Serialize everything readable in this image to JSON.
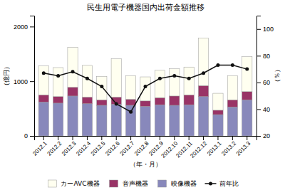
{
  "chart_data": {
    "type": "bar",
    "title": "民生用電子機器国内出荷金額推移",
    "xlabel": "（年・月）",
    "ylabel": "（億円）",
    "y2label": "（％）",
    "categories": [
      "2012.1",
      "2012.2",
      "2012.3",
      "2012.4",
      "2012.5",
      "2012.6",
      "2012.7",
      "2012.8",
      "2012.9",
      "2012.10",
      "2012.11",
      "2012.12",
      "2013.1",
      "2013.2",
      "2013.3"
    ],
    "stacked": true,
    "grid": false,
    "legend": "bottom",
    "series": [
      {
        "name": "映像機器",
        "type": "bar",
        "color": "#8888bb",
        "values": [
          620,
          600,
          730,
          590,
          560,
          580,
          560,
          540,
          570,
          560,
          570,
          720,
          390,
          530,
          660
        ]
      },
      {
        "name": "音声機器",
        "type": "bar",
        "color": "#993366",
        "values": [
          130,
          120,
          160,
          120,
          100,
          130,
          110,
          100,
          130,
          170,
          180,
          200,
          80,
          130,
          150
        ]
      },
      {
        "name": "カーAVC機器",
        "type": "bar",
        "color": "#fffff0",
        "values": [
          530,
          530,
          730,
          580,
          430,
          700,
          430,
          440,
          500,
          500,
          510,
          870,
          310,
          440,
          640
        ]
      },
      {
        "name": "前年比",
        "type": "line",
        "axis": "y2",
        "color": "#111111",
        "marker": "circle",
        "values": [
          67,
          65,
          68,
          63,
          57,
          44,
          38,
          57,
          63,
          65,
          63,
          67,
          73,
          73,
          70
        ]
      }
    ],
    "ylim": [
      0,
      2200
    ],
    "yticks": [
      0,
      1000,
      2000
    ],
    "y2lim": [
      20,
      110
    ],
    "y2ticks": [
      20,
      40,
      60,
      80,
      100
    ]
  }
}
